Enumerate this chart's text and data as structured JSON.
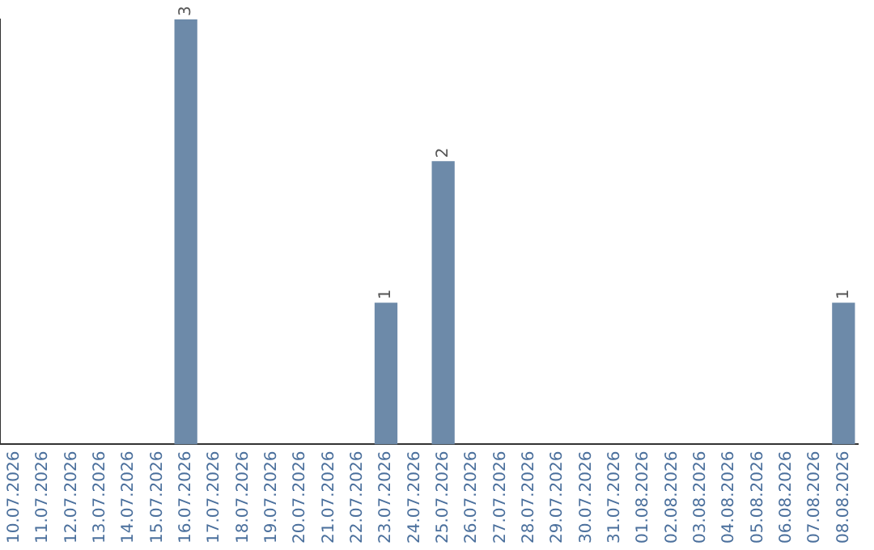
{
  "chart_data": {
    "type": "bar",
    "categories": [
      "10.07.2026",
      "11.07.2026",
      "12.07.2026",
      "13.07.2026",
      "14.07.2026",
      "15.07.2026",
      "16.07.2026",
      "17.07.2026",
      "18.07.2026",
      "19.07.2026",
      "20.07.2026",
      "21.07.2026",
      "22.07.2026",
      "23.07.2026",
      "24.07.2026",
      "25.07.2026",
      "26.07.2026",
      "27.07.2026",
      "28.07.2026",
      "29.07.2026",
      "30.07.2026",
      "31.07.2026",
      "01.08.2026",
      "02.08.2026",
      "03.08.2026",
      "04.08.2026",
      "05.08.2026",
      "06.08.2026",
      "07.08.2026",
      "08.08.2026"
    ],
    "values": [
      0,
      0,
      0,
      0,
      0,
      0,
      3,
      0,
      0,
      0,
      0,
      0,
      0,
      1,
      0,
      2,
      0,
      0,
      0,
      0,
      0,
      0,
      0,
      0,
      0,
      0,
      0,
      0,
      0,
      1
    ],
    "value_labels": [
      null,
      null,
      null,
      null,
      null,
      null,
      "3",
      null,
      null,
      null,
      null,
      null,
      null,
      "1",
      null,
      "2",
      null,
      null,
      null,
      null,
      null,
      null,
      null,
      null,
      null,
      null,
      null,
      null,
      null,
      "1"
    ],
    "color": "#6d8aa9",
    "ylim": [
      0,
      3
    ],
    "tick_labels": "x",
    "grid": false,
    "legend": false
  }
}
